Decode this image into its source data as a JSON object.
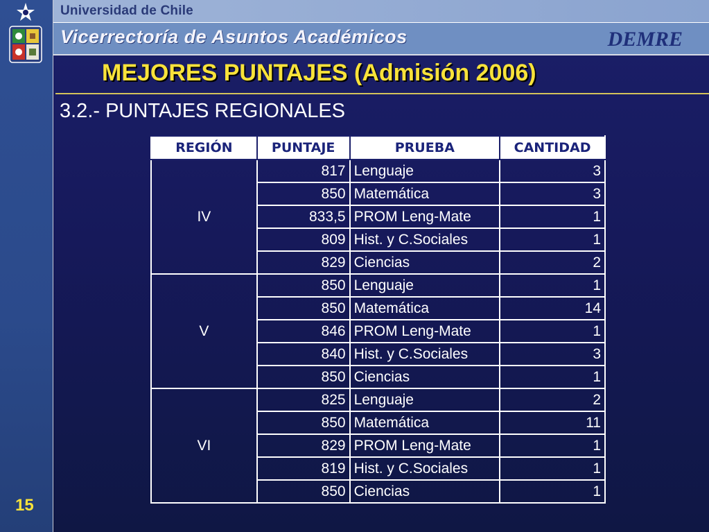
{
  "header": {
    "university": "Universidad de Chile",
    "vicerrectoria": "Vicerrectoría de Asuntos Académicos",
    "demre": "DEMRE"
  },
  "title": "MEJORES PUNTAJES (Admisión 2006)",
  "subtitle": "3.2.- PUNTAJES REGIONALES",
  "page_number": "15",
  "table": {
    "headers": [
      "REGIÓN",
      "PUNTAJE",
      "PRUEBA",
      "CANTIDAD"
    ],
    "groups": [
      {
        "region": "IV",
        "rows": [
          {
            "score": "817",
            "test": "Lenguaje",
            "count": "3"
          },
          {
            "score": "850",
            "test": "Matemática",
            "count": "3"
          },
          {
            "score": "833,5",
            "test": "PROM Leng-Mate",
            "count": "1"
          },
          {
            "score": "809",
            "test": "Hist. y C.Sociales",
            "count": "1"
          },
          {
            "score": "829",
            "test": "Ciencias",
            "count": "2"
          }
        ]
      },
      {
        "region": "V",
        "rows": [
          {
            "score": "850",
            "test": "Lenguaje",
            "count": "1"
          },
          {
            "score": "850",
            "test": "Matemática",
            "count": "14"
          },
          {
            "score": "846",
            "test": "PROM Leng-Mate",
            "count": "1"
          },
          {
            "score": "840",
            "test": "Hist. y C.Sociales",
            "count": "3"
          },
          {
            "score": "850",
            "test": "Ciencias",
            "count": "1"
          }
        ]
      },
      {
        "region": "VI",
        "rows": [
          {
            "score": "825",
            "test": "Lenguaje",
            "count": "2"
          },
          {
            "score": "850",
            "test": "Matemática",
            "count": "11"
          },
          {
            "score": "829",
            "test": "PROM Leng-Mate",
            "count": "1"
          },
          {
            "score": "819",
            "test": "Hist. y C.Sociales",
            "count": "1"
          },
          {
            "score": "850",
            "test": "Ciencias",
            "count": "1"
          }
        ]
      }
    ]
  },
  "colors": {
    "accent_yellow": "#f8e23a",
    "background_navy": "#1b1f6a",
    "header_blue": "#6f8fc2"
  }
}
